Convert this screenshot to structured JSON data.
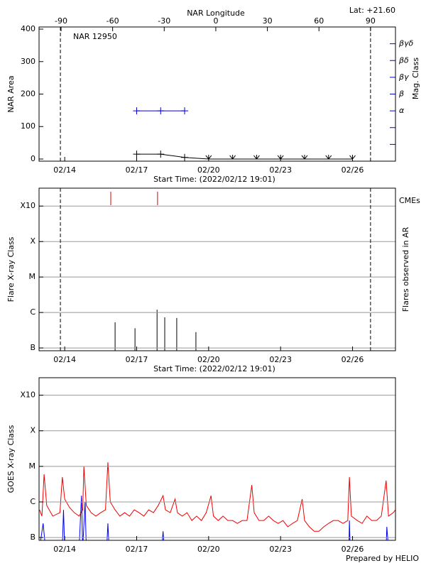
{
  "chart_data": [
    {
      "type": "line",
      "title": "NAR 12950",
      "annotation": "Lat: +21.60",
      "x_label": "Start Time: (2022/02/12 19:01)",
      "x2_label": "NAR Longitude",
      "y_label": "NAR Area",
      "y2_label": "Mag. Class",
      "xlim": [
        12.93,
        27.79
      ],
      "xticks": [
        {
          "value": 14,
          "label": "02/14"
        },
        {
          "value": 17,
          "label": "02/17"
        },
        {
          "value": 20,
          "label": "02/20"
        },
        {
          "value": 23,
          "label": "02/23"
        },
        {
          "value": 26,
          "label": "02/26"
        }
      ],
      "x2lim": [
        -102.8,
        104.5
      ],
      "x2ticks": [
        -90,
        -60,
        -30,
        0,
        30,
        60,
        90
      ],
      "ylim": [
        -6.6,
        406.6
      ],
      "yticks": [
        0,
        100,
        200,
        300,
        400
      ],
      "y2_categories": [
        null,
        null,
        "α",
        "β",
        "βγ",
        "βδ",
        "βγδ"
      ],
      "limbs": [
        13.82,
        26.75
      ],
      "grid": false,
      "log_y": false,
      "series": [
        {
          "color": "#000000",
          "marker": "+",
          "x": [
            17,
            18,
            19,
            20,
            21,
            22,
            23,
            24,
            25,
            26
          ],
          "values": [
            15,
            15,
            5,
            0,
            0,
            0,
            0,
            0,
            0,
            0
          ]
        },
        {
          "color": "#0000cc",
          "marker": "+",
          "axis": "y2",
          "x": [
            17,
            18,
            19
          ],
          "values": [
            "α",
            "α",
            "α"
          ]
        }
      ]
    },
    {
      "type": "bar",
      "x_label": "Start Time: (2022/02/12 19:01)",
      "y_label": "Flare X-ray Class",
      "y2_label": "Flares observed in AR",
      "xlim": [
        12.93,
        27.79
      ],
      "xticks": [
        {
          "value": 14,
          "label": "02/14"
        },
        {
          "value": 17,
          "label": "02/17"
        },
        {
          "value": 20,
          "label": "02/20"
        },
        {
          "value": 23,
          "label": "02/23"
        },
        {
          "value": 26,
          "label": "02/26"
        }
      ],
      "ylim": [
        8.35e-08,
        0.0032
      ],
      "log_y": true,
      "grid": true,
      "yticks": [
        {
          "value": 1e-07,
          "label": "B"
        },
        {
          "value": 1e-06,
          "label": "C"
        },
        {
          "value": 1e-05,
          "label": "M"
        },
        {
          "value": 0.0001,
          "label": "X"
        },
        {
          "value": 0.001,
          "label": "X10"
        }
      ],
      "limbs": [
        13.82,
        26.75
      ],
      "color": "#000000",
      "x": [
        16.1,
        16.93,
        17.85,
        18.17,
        18.67,
        19.47
      ],
      "values": [
        5.3e-07,
        3.6e-07,
        1.2e-06,
        7.3e-07,
        7e-07,
        2.8e-07
      ],
      "cmes": {
        "name": "CMEs",
        "color": "#dd0000",
        "x": [
          15.92,
          17.87
        ]
      }
    },
    {
      "type": "line",
      "y_label": "GOES X-ray Class",
      "xlim": [
        12.93,
        27.79
      ],
      "xticks": [
        {
          "value": 14,
          "label": "02/14"
        },
        {
          "value": 17,
          "label": "02/17"
        },
        {
          "value": 20,
          "label": "02/20"
        },
        {
          "value": 23,
          "label": "02/23"
        },
        {
          "value": 26,
          "label": "02/26"
        }
      ],
      "ylim": [
        8.35e-08,
        0.0031
      ],
      "log_y": true,
      "grid": true,
      "yticks": [
        {
          "value": 1e-07,
          "label": "B"
        },
        {
          "value": 1e-06,
          "label": "C"
        },
        {
          "value": 1e-05,
          "label": "M"
        },
        {
          "value": 0.0001,
          "label": "X"
        },
        {
          "value": 0.001,
          "label": "X10"
        }
      ],
      "series": [
        {
          "color": "#ee0000",
          "x": [
            12.95,
            13.05,
            13.14,
            13.25,
            13.5,
            13.8,
            13.9,
            14.0,
            14.2,
            14.4,
            14.6,
            14.75,
            14.8,
            14.9,
            15.1,
            15.3,
            15.5,
            15.7,
            15.8,
            15.9,
            16.1,
            16.3,
            16.5,
            16.7,
            16.9,
            17.1,
            17.3,
            17.5,
            17.7,
            17.9,
            18.1,
            18.2,
            18.4,
            18.6,
            18.7,
            18.9,
            19.1,
            19.3,
            19.5,
            19.7,
            19.9,
            20.1,
            20.2,
            20.4,
            20.6,
            20.8,
            21.0,
            21.2,
            21.4,
            21.6,
            21.8,
            21.9,
            22.1,
            22.3,
            22.5,
            22.7,
            22.9,
            23.1,
            23.3,
            23.5,
            23.7,
            23.9,
            24.0,
            24.2,
            24.4,
            24.6,
            24.8,
            25.0,
            25.2,
            25.4,
            25.6,
            25.8,
            25.87,
            25.95,
            26.2,
            26.4,
            26.6,
            26.8,
            27.0,
            27.2,
            27.4,
            27.5,
            27.7,
            27.79
          ],
          "values": [
            6e-07,
            4e-07,
            6e-06,
            8e-07,
            4e-07,
            5e-07,
            5e-06,
            1.2e-06,
            7e-07,
            5e-07,
            4e-07,
            6e-07,
            1e-05,
            8e-07,
            5e-07,
            4e-07,
            5e-07,
            6e-07,
            1.3e-05,
            1e-06,
            6e-07,
            4e-07,
            5e-07,
            4e-07,
            6e-07,
            5e-07,
            4e-07,
            6e-07,
            5e-07,
            8e-07,
            1.5e-06,
            6e-07,
            5e-07,
            1.2e-06,
            5e-07,
            4e-07,
            5e-07,
            3e-07,
            4e-07,
            3e-07,
            5e-07,
            1.5e-06,
            4e-07,
            3e-07,
            4e-07,
            3e-07,
            3e-07,
            2.5e-07,
            3e-07,
            3e-07,
            3e-06,
            5e-07,
            3e-07,
            3e-07,
            4e-07,
            3e-07,
            2.5e-07,
            3e-07,
            2e-07,
            2.5e-07,
            3e-07,
            1.2e-06,
            3e-07,
            2e-07,
            1.5e-07,
            1.5e-07,
            2e-07,
            2.5e-07,
            3e-07,
            3e-07,
            2.5e-07,
            3e-07,
            5e-06,
            4e-07,
            3e-07,
            2.5e-07,
            4e-07,
            3e-07,
            3e-07,
            4e-07,
            4e-06,
            4e-07,
            5e-07,
            6e-07
          ]
        },
        {
          "color": "#0000ee",
          "x": [
            12.95,
            13.1,
            13.2,
            13.9,
            13.95,
            14.0,
            14.6,
            14.7,
            14.75,
            14.85,
            14.9,
            15.75,
            15.8,
            15.85,
            18.05,
            18.1,
            18.15,
            25.85,
            25.87,
            25.9,
            27.4,
            27.43,
            27.5,
            27.79
          ],
          "values": [
            5e-08,
            2.5e-07,
            5e-08,
            5e-08,
            6e-07,
            5e-08,
            5e-08,
            1.5e-06,
            5e-08,
            1e-06,
            5e-08,
            5e-08,
            2.5e-07,
            5e-08,
            5e-08,
            1.5e-07,
            5e-08,
            5e-08,
            3e-07,
            5e-08,
            5e-08,
            2e-07,
            5e-08,
            5e-08
          ]
        }
      ]
    }
  ],
  "footer": "Prepared by HELIO"
}
